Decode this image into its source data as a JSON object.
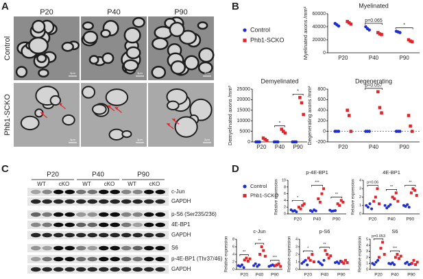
{
  "panel_a": {
    "label": "A",
    "columns": [
      "P20",
      "P40",
      "P90"
    ],
    "rows": [
      "Control",
      "Phb1-SCKO"
    ],
    "scale_bar": "2μm"
  },
  "panel_b": {
    "label": "B"
  },
  "panel_c": {
    "label": "C",
    "timepoints": [
      "P20",
      "P40",
      "P90"
    ],
    "genotypes": [
      "WT",
      "cKO"
    ],
    "bands": [
      "c-Jun",
      "GAPDH",
      "p-S6 (Ser235/236)",
      "4E-BP1",
      "GAPDH",
      "S6",
      "p-4E-BP1 (Thr37/46)",
      "GAPDH"
    ]
  },
  "panel_d": {
    "label": "D"
  },
  "chart_data": [
    {
      "type": "scatter",
      "title": "Myelinated",
      "y_label": "Myelinated axons /mm²",
      "categories": [
        "P20",
        "P40",
        "P90"
      ],
      "ylim": [
        0,
        60000
      ],
      "yticks": [
        0,
        20000,
        40000,
        60000
      ],
      "annotations": [
        null,
        "p=0.065",
        "*"
      ],
      "series": [
        {
          "name": "Control",
          "color": "#1f2ecf",
          "marker": "circle",
          "values": [
            [
              45000,
              43000,
              41000
            ],
            [
              40000,
              37000,
              35000
            ],
            [
              33000,
              32000,
              31000
            ]
          ]
        },
        {
          "name": "Phb1-SCKO",
          "color": "#e0262b",
          "marker": "square",
          "values": [
            [
              48000,
              46000,
              44000
            ],
            [
              31000,
              29000,
              28000
            ],
            [
              20000,
              18000,
              17000
            ]
          ]
        }
      ]
    },
    {
      "type": "scatter",
      "title": "Demyelinated",
      "y_label": "Demyelinated axons /mm²",
      "categories": [
        "P20",
        "P40",
        "P90"
      ],
      "ylim": [
        0,
        25000
      ],
      "yticks": [
        0,
        5000,
        10000,
        15000,
        20000,
        25000
      ],
      "annotations": [
        null,
        "*",
        "*"
      ],
      "series": [
        {
          "name": "Control",
          "color": "#1f2ecf",
          "marker": "circle",
          "values": [
            [
              0,
              0,
              0
            ],
            [
              0,
              0,
              0
            ],
            [
              0,
              0,
              0
            ]
          ]
        },
        {
          "name": "Phb1-SCKO",
          "color": "#e0262b",
          "marker": "square",
          "values": [
            [
              1800,
              1200,
              600
            ],
            [
              6000,
              5000,
              4200
            ],
            [
              21000,
              18500,
              13000
            ]
          ]
        }
      ]
    },
    {
      "type": "scatter",
      "title": "Degenerating",
      "y_label": "Degenerating axons /mm²",
      "categories": [
        "P20",
        "P40",
        "P90"
      ],
      "ylim": [
        -200,
        800
      ],
      "yticks": [
        -200,
        0,
        200,
        400,
        600,
        800
      ],
      "annotations": [
        null,
        "p=0.057",
        null
      ],
      "series": [
        {
          "name": "Control",
          "color": "#1f2ecf",
          "marker": "circle",
          "values": [
            [
              0,
              0,
              0
            ],
            [
              0,
              0,
              0
            ],
            [
              0,
              0,
              0
            ]
          ]
        },
        {
          "name": "Phb1-SCKO",
          "color": "#e0262b",
          "marker": "square",
          "values": [
            [
              400,
              300,
              0
            ],
            [
              750,
              450,
              350
            ],
            [
              300,
              100,
              0
            ]
          ]
        }
      ]
    },
    {
      "type": "scatter",
      "title": "p-4E-BP1",
      "y_label": "Relative expression",
      "categories": [
        "P20",
        "P40",
        "P90"
      ],
      "ylim": [
        0,
        10
      ],
      "yticks": [
        0,
        2,
        4,
        6,
        8,
        10
      ],
      "annotations": [
        "*",
        "***",
        "**"
      ],
      "series": [
        {
          "name": "Control",
          "color": "#1f2ecf",
          "marker": "circle",
          "values": [
            [
              1.2,
              0.8,
              1.0,
              0.6
            ],
            [
              1.0,
              0.7,
              1.2,
              0.9
            ],
            [
              1.1,
              0.8,
              0.9,
              1.0
            ]
          ]
        },
        {
          "name": "Phb1-SCKO",
          "color": "#e0262b",
          "marker": "square",
          "values": [
            [
              2.0,
              1.5,
              2.5,
              3.0
            ],
            [
              4.5,
              3.5,
              6.0,
              7.5
            ],
            [
              3.0,
              2.5,
              4.0,
              3.5
            ]
          ]
        }
      ]
    },
    {
      "type": "scatter",
      "title": "4E-BP1",
      "y_label": "Relative expression",
      "categories": [
        "P20",
        "P40",
        "P90"
      ],
      "ylim": [
        0,
        4
      ],
      "yticks": [
        0,
        1,
        2,
        3,
        4
      ],
      "annotations": [
        "p=0.06",
        "**",
        "**"
      ],
      "series": [
        {
          "name": "Control",
          "color": "#1f2ecf",
          "marker": "circle",
          "values": [
            [
              1.0,
              0.8,
              1.2,
              0.6
            ],
            [
              1.0,
              0.7,
              0.9,
              1.1
            ],
            [
              1.0,
              0.9,
              1.1,
              0.8
            ]
          ]
        },
        {
          "name": "Phb1-SCKO",
          "color": "#e0262b",
          "marker": "square",
          "values": [
            [
              1.5,
              2.0,
              3.0,
              1.2
            ],
            [
              2.0,
              1.8,
              2.5,
              1.5
            ],
            [
              2.5,
              3.0,
              2.8,
              2.2
            ]
          ]
        }
      ]
    },
    {
      "type": "scatter",
      "title": "c-Jun",
      "y_label": "Relative expression",
      "categories": [
        "P20",
        "P40",
        "P90"
      ],
      "ylim": [
        0,
        8
      ],
      "yticks": [
        0,
        2,
        4,
        6,
        8
      ],
      "annotations": [
        "**",
        "**",
        "***"
      ],
      "series": [
        {
          "name": "Control",
          "color": "#1f2ecf",
          "marker": "circle",
          "values": [
            [
              1.0,
              0.8,
              1.2,
              0.5
            ],
            [
              1.0,
              1.5,
              0.8,
              1.2
            ],
            [
              0.8,
              1.0,
              1.2,
              0.9
            ]
          ]
        },
        {
          "name": "Phb1-SCKO",
          "color": "#e0262b",
          "marker": "square",
          "values": [
            [
              2.5,
              3.0,
              2.2,
              2.8
            ],
            [
              4.0,
              6.0,
              5.0,
              3.5
            ],
            [
              1.0,
              1.2,
              1.5,
              0.8
            ]
          ]
        }
      ]
    },
    {
      "type": "scatter",
      "title": "p-S6",
      "y_label": "Relative expression",
      "categories": [
        "P20",
        "P40",
        "P90"
      ],
      "ylim": [
        0,
        4
      ],
      "yticks": [
        0,
        1,
        2,
        3,
        4
      ],
      "annotations": [
        "*",
        "**",
        null
      ],
      "series": [
        {
          "name": "Control",
          "color": "#1f2ecf",
          "marker": "circle",
          "values": [
            [
              0.8,
              1.0,
              1.2,
              0.6
            ],
            [
              1.0,
              0.8,
              0.6,
              1.2
            ],
            [
              0.9,
              1.0,
              0.8,
              1.1
            ]
          ]
        },
        {
          "name": "Phb1-SCKO",
          "color": "#e0262b",
          "marker": "square",
          "values": [
            [
              1.5,
              1.2,
              2.0,
              1.0
            ],
            [
              2.5,
              2.0,
              1.5,
              1.8
            ],
            [
              1.0,
              0.8,
              1.2,
              0.9
            ]
          ]
        }
      ]
    },
    {
      "type": "scatter",
      "title": "S6",
      "y_label": "Relative expression",
      "categories": [
        "P20",
        "P40",
        "P90"
      ],
      "ylim": [
        0,
        5
      ],
      "yticks": [
        0,
        1,
        2,
        3,
        4,
        5
      ],
      "annotations": [
        "p=0.053",
        "***",
        null
      ],
      "series": [
        {
          "name": "Control",
          "color": "#1f2ecf",
          "marker": "circle",
          "values": [
            [
              1.0,
              0.8,
              1.2,
              1.5
            ],
            [
              1.0,
              0.9,
              1.1,
              0.8
            ],
            [
              1.0,
              1.2,
              0.8,
              0.9
            ]
          ]
        },
        {
          "name": "Phb1-SCKO",
          "color": "#e0262b",
          "marker": "square",
          "values": [
            [
              2.0,
              3.5,
              4.5,
              2.5
            ],
            [
              2.0,
              2.5,
              1.8,
              2.2
            ],
            [
              1.0,
              1.5,
              0.8,
              1.2
            ]
          ]
        }
      ]
    }
  ]
}
